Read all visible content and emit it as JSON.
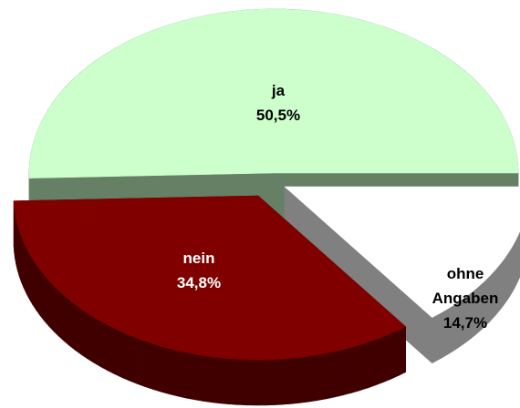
{
  "chart_data": {
    "type": "pie3d",
    "categories": [
      "ja",
      "nein",
      "ohne Angaben"
    ],
    "values": [
      50.5,
      34.8,
      14.7
    ],
    "value_labels": [
      "50,5%",
      "34,8%",
      "14,7%"
    ],
    "colors": [
      "#ccffcc",
      "#800000",
      "#ffffff"
    ]
  }
}
